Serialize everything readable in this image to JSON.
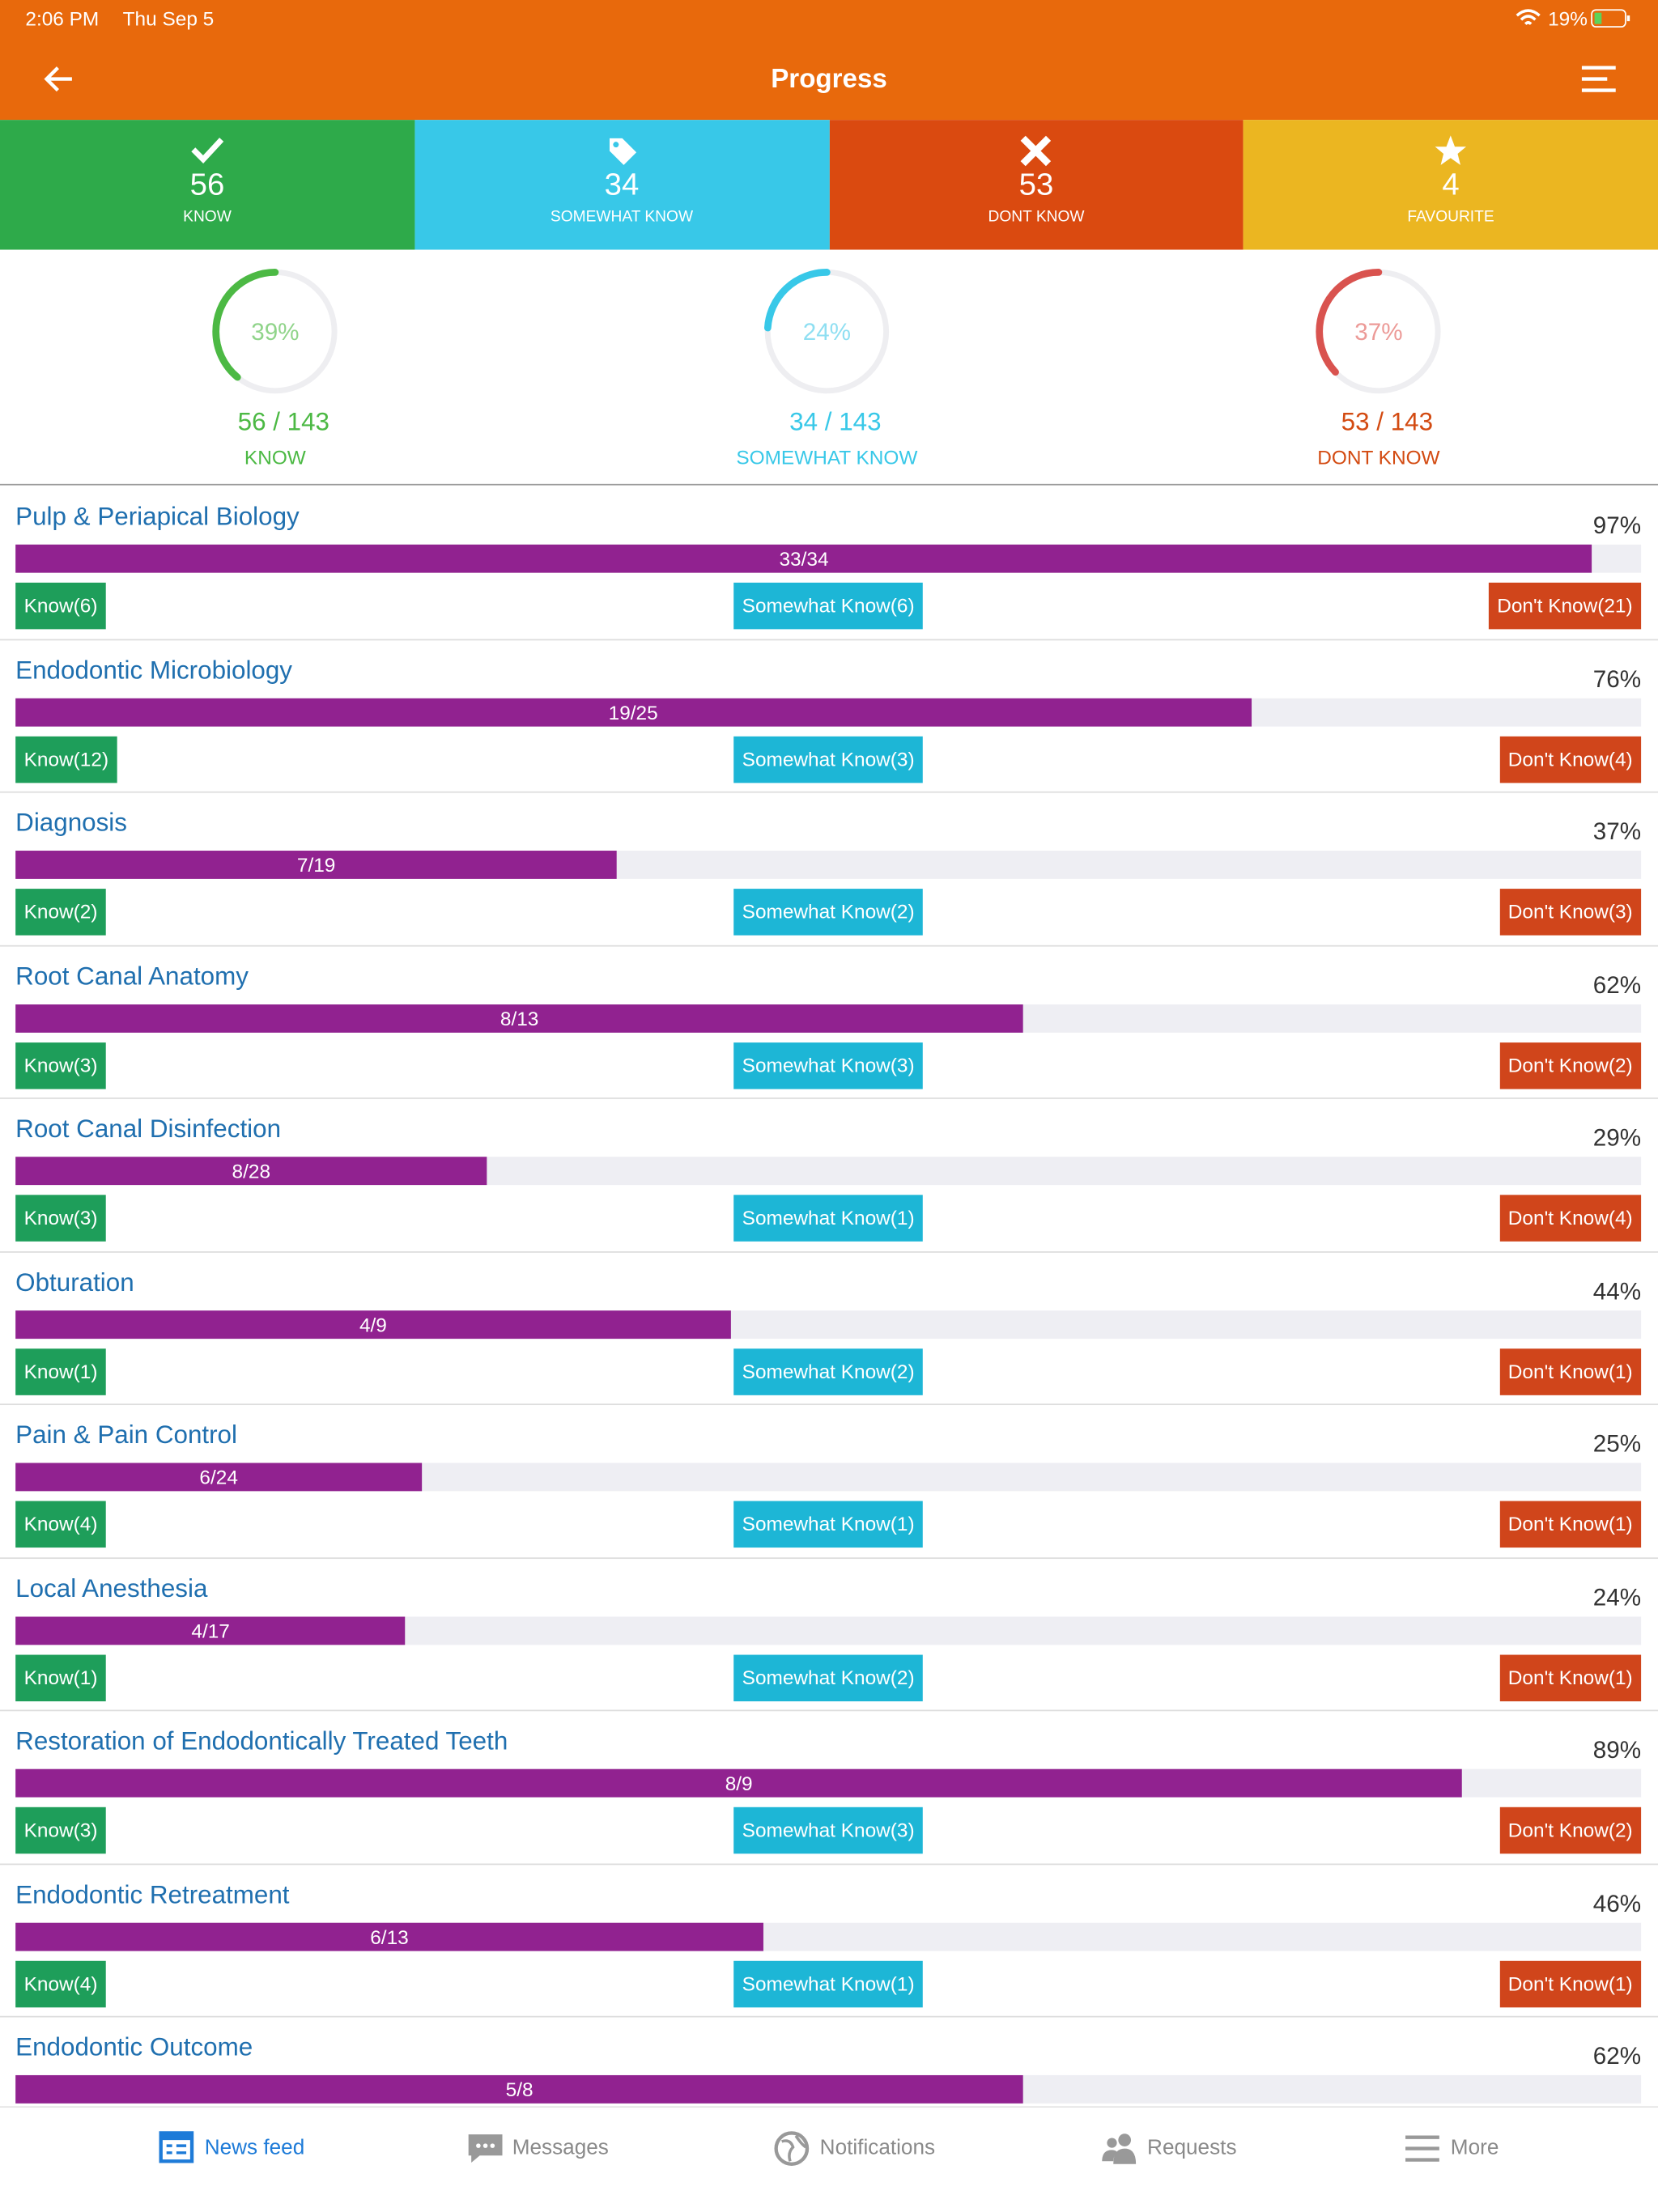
{
  "status": {
    "time": "2:06 PM",
    "date": "Thu Sep 5",
    "battery": "19%"
  },
  "header": {
    "title": "Progress"
  },
  "tiles": [
    {
      "count": 56,
      "label": "KNOW"
    },
    {
      "count": 34,
      "label": "SOMEWHAT KNOW"
    },
    {
      "count": 53,
      "label": "DONT KNOW"
    },
    {
      "count": 4,
      "label": "FAVOURITE"
    }
  ],
  "rings": [
    {
      "percent": {
        "value": 39,
        "label": "39%"
      },
      "fraction": "56 / 143",
      "label": "KNOW"
    },
    {
      "percent": {
        "value": 24,
        "label": "24%"
      },
      "fraction": "34 / 143",
      "label": "SOMEWHAT KNOW"
    },
    {
      "percent": {
        "value": 37,
        "label": "37%"
      },
      "fraction": "53 / 143",
      "label": "DONT KNOW"
    }
  ],
  "topics": [
    {
      "title": "Pulp & Periapical Biology",
      "percent": {
        "value": 97,
        "label": "97%"
      },
      "fraction": "33/34",
      "know": "Know(6)",
      "somewhat": "Somewhat Know(6)",
      "dont": "Don't Know(21)"
    },
    {
      "title": "Endodontic Microbiology",
      "percent": {
        "value": 76,
        "label": "76%"
      },
      "fraction": "19/25",
      "know": "Know(12)",
      "somewhat": "Somewhat Know(3)",
      "dont": "Don't Know(4)"
    },
    {
      "title": "Diagnosis",
      "percent": {
        "value": 37,
        "label": "37%"
      },
      "fraction": "7/19",
      "know": "Know(2)",
      "somewhat": "Somewhat Know(2)",
      "dont": "Don't Know(3)"
    },
    {
      "title": "Root Canal Anatomy",
      "percent": {
        "value": 62,
        "label": "62%"
      },
      "fraction": "8/13",
      "know": "Know(3)",
      "somewhat": "Somewhat Know(3)",
      "dont": "Don't Know(2)"
    },
    {
      "title": "Root Canal Disinfection",
      "percent": {
        "value": 29,
        "label": "29%"
      },
      "fraction": "8/28",
      "know": "Know(3)",
      "somewhat": "Somewhat Know(1)",
      "dont": "Don't Know(4)"
    },
    {
      "title": "Obturation",
      "percent": {
        "value": 44,
        "label": "44%"
      },
      "fraction": "4/9",
      "know": "Know(1)",
      "somewhat": "Somewhat Know(2)",
      "dont": "Don't Know(1)"
    },
    {
      "title": "Pain & Pain Control",
      "percent": {
        "value": 25,
        "label": "25%"
      },
      "fraction": "6/24",
      "know": "Know(4)",
      "somewhat": "Somewhat Know(1)",
      "dont": "Don't Know(1)"
    },
    {
      "title": "Local Anesthesia",
      "percent": {
        "value": 24,
        "label": "24%"
      },
      "fraction": "4/17",
      "know": "Know(1)",
      "somewhat": "Somewhat Know(2)",
      "dont": "Don't Know(1)"
    },
    {
      "title": "Restoration of Endodontically Treated Teeth",
      "percent": {
        "value": 89,
        "label": "89%"
      },
      "fraction": "8/9",
      "know": "Know(3)",
      "somewhat": "Somewhat Know(3)",
      "dont": "Don't Know(2)"
    },
    {
      "title": "Endodontic Retreatment",
      "percent": {
        "value": 46,
        "label": "46%"
      },
      "fraction": "6/13",
      "know": "Know(4)",
      "somewhat": "Somewhat Know(1)",
      "dont": "Don't Know(1)"
    },
    {
      "title": "Endodontic Outcome",
      "percent": {
        "value": 62,
        "label": "62%"
      },
      "fraction": "5/8"
    }
  ],
  "tabs": [
    "News feed",
    "Messages",
    "Notifications",
    "Requests",
    "More"
  ]
}
